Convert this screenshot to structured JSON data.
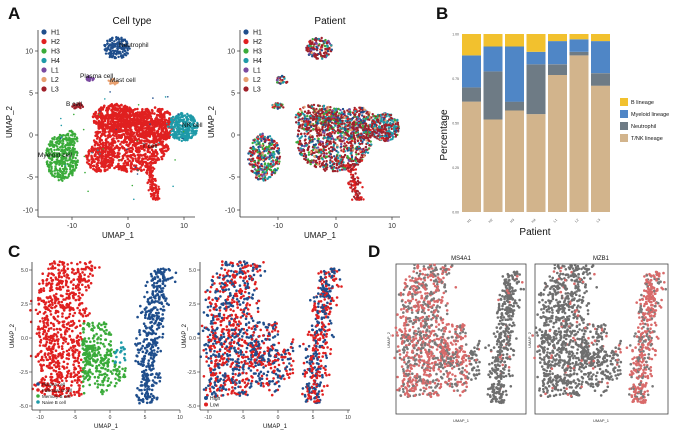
{
  "panels": {
    "a": {
      "letter": "A",
      "left_title": "Cell type",
      "right_title": "Patient",
      "xlabel": "UMAP_1",
      "ylabel": "UMAP_2",
      "xticks": [
        "-10",
        "0",
        "10"
      ],
      "yticks": [
        "10",
        "5",
        "0",
        "-5",
        "-10"
      ],
      "legend": [
        {
          "label": "H1",
          "color": "#1f4e8c"
        },
        {
          "label": "H2",
          "color": "#e02020"
        },
        {
          "label": "H3",
          "color": "#3aab3a"
        },
        {
          "label": "H4",
          "color": "#1f9aa8"
        },
        {
          "label": "L1",
          "color": "#7a4aa0"
        },
        {
          "label": "L2",
          "color": "#e8a070"
        },
        {
          "label": "L3",
          "color": "#a0202a"
        }
      ],
      "cluster_labels": [
        "Neutrophil",
        "Plasma cell",
        "Mast cell",
        "B cell",
        "NK cell",
        "Myeloid cell",
        "T cell"
      ]
    },
    "b": {
      "letter": "B",
      "ylabel": "Percentage",
      "xlabel": "Patient"
    },
    "c": {
      "letter": "C",
      "xlabel": "UMAP_1",
      "ylabel": "UMAP_2",
      "xticks": [
        "-10",
        "-5",
        "0",
        "5",
        "10"
      ],
      "yticks": [
        "5.0",
        "2.5",
        "0.0",
        "-2.5",
        "-5.0"
      ],
      "left_legend": [
        {
          "label": "Plasma cell",
          "color": "#1f4e8c"
        },
        {
          "label": "Follicular B cell",
          "color": "#e02020"
        },
        {
          "label": "Memory B cell",
          "color": "#3aab3a"
        },
        {
          "label": "Naive B cell",
          "color": "#1f9aa8"
        }
      ],
      "right_legend": [
        {
          "label": "High",
          "color": "#1f4e8c"
        },
        {
          "label": "Low",
          "color": "#e02020"
        }
      ]
    },
    "d": {
      "letter": "D",
      "left_title": "MS4A1",
      "right_title": "MZB1",
      "xlabel": "UMAP_1",
      "ylabel": "UMAP_2"
    }
  },
  "chart_data": {
    "type": "bar",
    "stacked": true,
    "categories": [
      "H1",
      "H2",
      "H3",
      "H4",
      "L1",
      "L2",
      "L3"
    ],
    "yticks": [
      "0.00",
      "0.25",
      "0.50",
      "0.75",
      "1.00"
    ],
    "ylim": [
      0,
      1
    ],
    "xlabel": "Patient",
    "ylabel": "Percentage",
    "legend_position": "right",
    "series": [
      {
        "name": "T/NK lineage",
        "color": "#d2b48c",
        "values": [
          0.62,
          0.52,
          0.57,
          0.55,
          0.77,
          0.88,
          0.71
        ]
      },
      {
        "name": "Neutrophil",
        "color": "#6e7b85",
        "values": [
          0.08,
          0.27,
          0.05,
          0.28,
          0.06,
          0.02,
          0.07
        ]
      },
      {
        "name": "Myeloid lineage",
        "color": "#4f86c6",
        "values": [
          0.18,
          0.14,
          0.31,
          0.07,
          0.13,
          0.07,
          0.18
        ]
      },
      {
        "name": "B lineage",
        "color": "#f2c12e",
        "values": [
          0.12,
          0.07,
          0.07,
          0.1,
          0.04,
          0.03,
          0.04
        ]
      }
    ]
  }
}
